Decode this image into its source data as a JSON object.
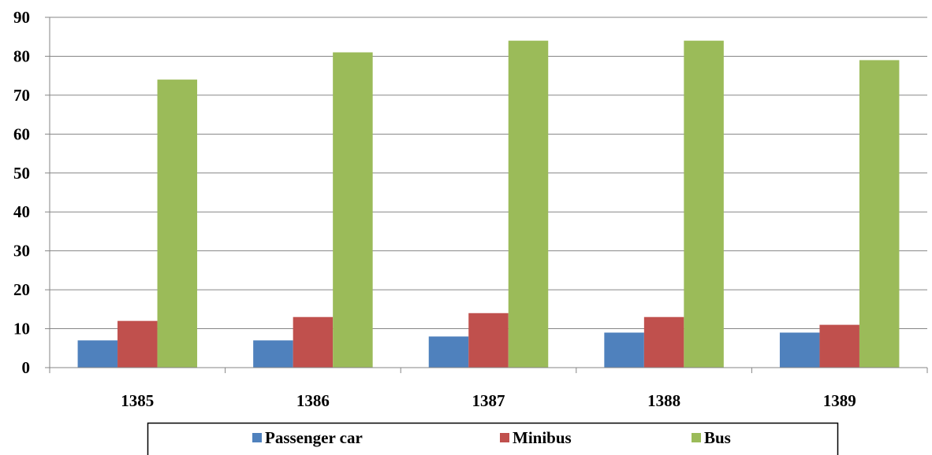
{
  "chart_data": {
    "type": "bar",
    "categories": [
      "1385",
      "1386",
      "1387",
      "1388",
      "1389"
    ],
    "series": [
      {
        "name": "Passenger car",
        "values": [
          7,
          7,
          8,
          9,
          9
        ],
        "color": "#4F81BD"
      },
      {
        "name": "Minibus",
        "values": [
          12,
          13,
          14,
          13,
          11
        ],
        "color": "#C0504D"
      },
      {
        "name": "Bus",
        "values": [
          74,
          81,
          84,
          84,
          79
        ],
        "color": "#9BBB59"
      }
    ],
    "ylim": [
      0,
      90
    ],
    "yticks": [
      0,
      10,
      20,
      30,
      40,
      50,
      60,
      70,
      80,
      90
    ],
    "grid": true,
    "legend_position": "bottom"
  }
}
